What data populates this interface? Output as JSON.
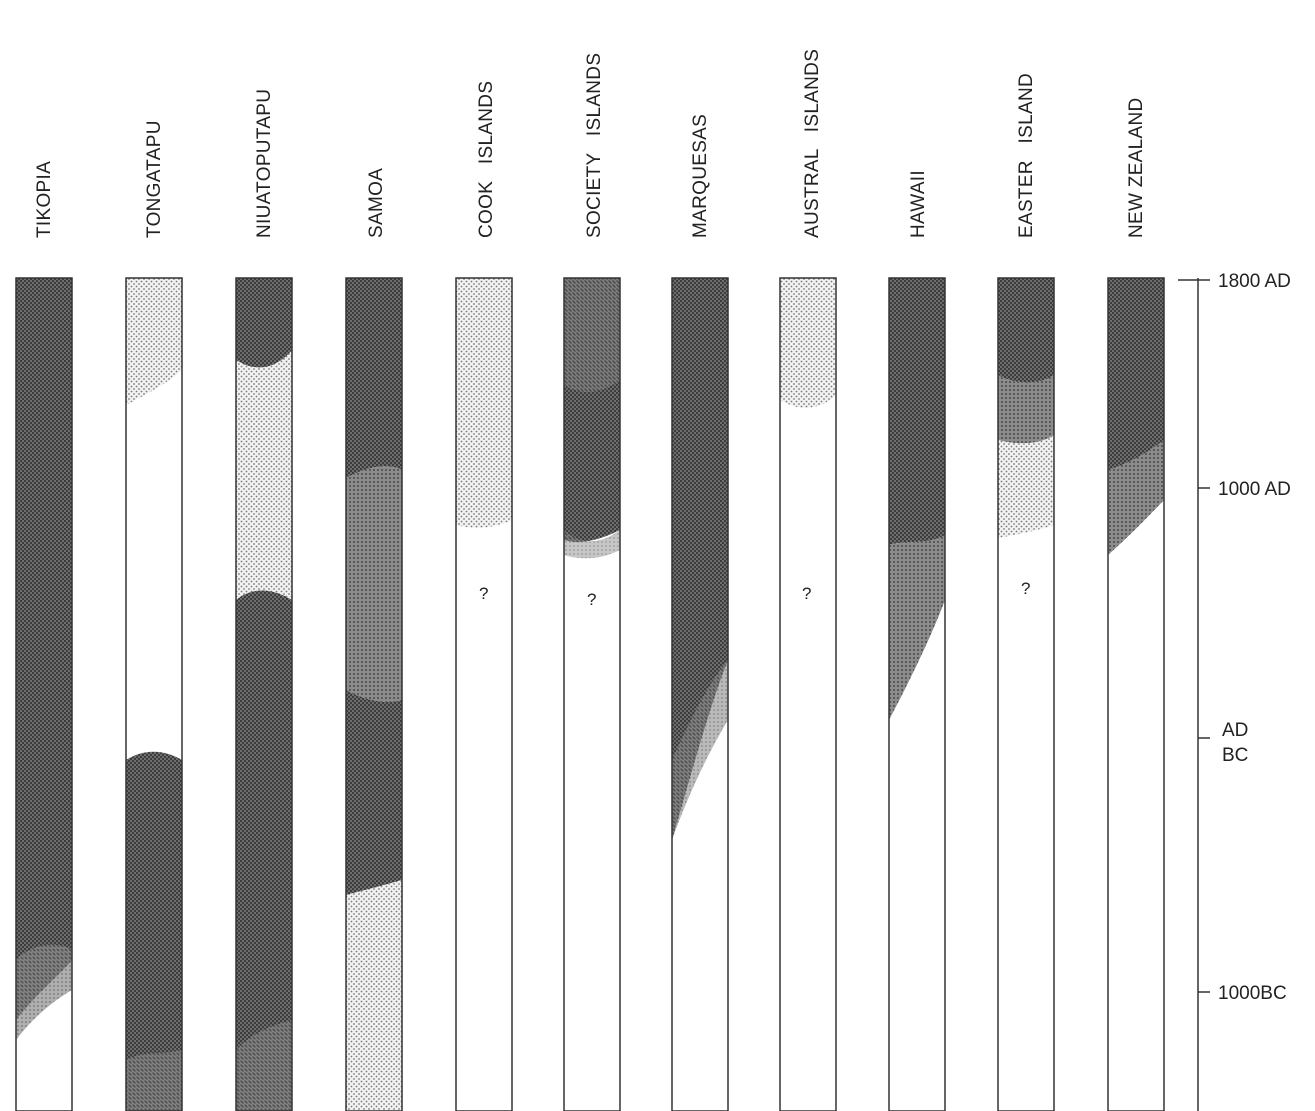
{
  "islands": [
    {
      "name": "TIKOPIA",
      "question": ""
    },
    {
      "name": "TONGATAPU",
      "question": ""
    },
    {
      "name": "NIUATOPUTAPU",
      "question": ""
    },
    {
      "name": "SAMOA",
      "question": ""
    },
    {
      "name": "COOK   ISLANDS",
      "question": "?"
    },
    {
      "name": "SOCIETY   ISLANDS",
      "question": "?"
    },
    {
      "name": "MARQUESAS",
      "question": ""
    },
    {
      "name": "AUSTRAL   ISLANDS",
      "question": "?"
    },
    {
      "name": "HAWAII",
      "question": ""
    },
    {
      "name": "EASTER   ISLAND",
      "question": "?"
    },
    {
      "name": "NEW ZEALAND",
      "question": ""
    }
  ],
  "time_axis": {
    "top": "1800 AD",
    "mid1": "1000 AD",
    "ad": "AD",
    "bc": "BC",
    "low": "1000BC"
  }
}
